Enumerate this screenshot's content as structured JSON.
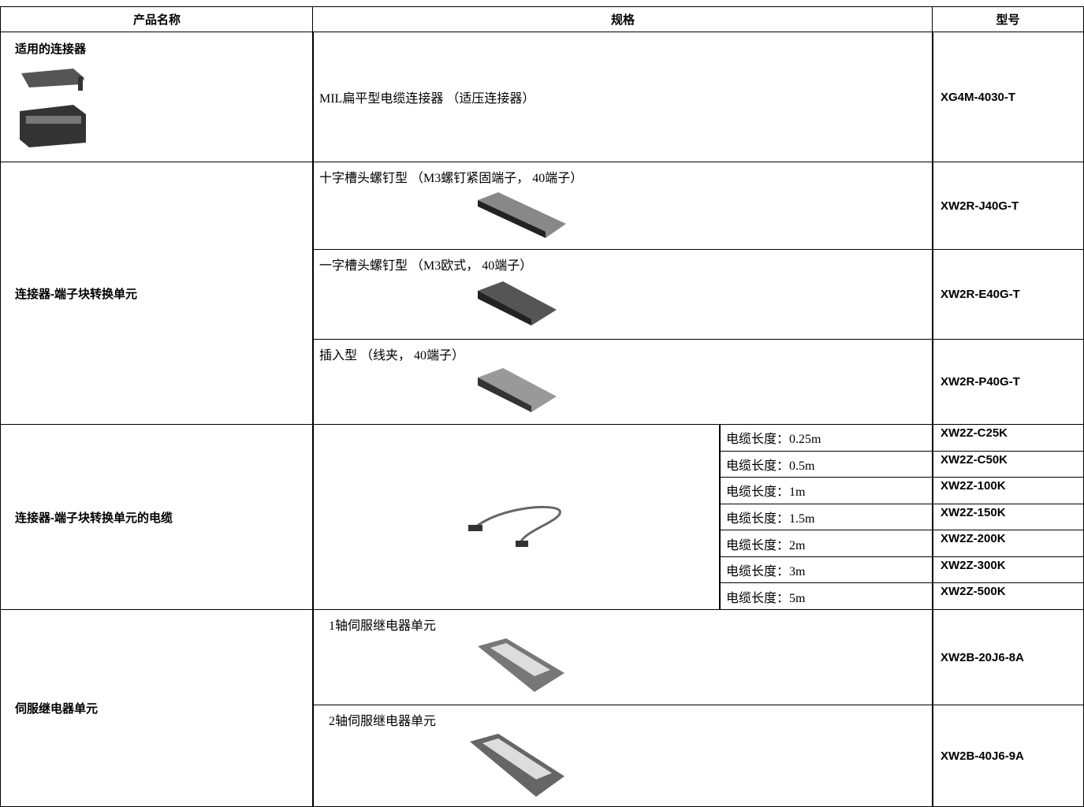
{
  "header": [
    "产品名称",
    "规格",
    "型号"
  ],
  "groups": [
    {
      "name": "适用的连接器",
      "items": [
        {
          "spec": "MIL扁平型电缆连接器 （适压连接器）",
          "model": "XG4M-4030-T"
        }
      ]
    },
    {
      "name": "连接器-端子块转换单元",
      "items": [
        {
          "spec": "十字槽头螺钉型 （M3螺钉紧固端子， 40端子）",
          "model": "XW2R-J40G-T"
        },
        {
          "spec": "一字槽头螺钉型 （M3欧式， 40端子）",
          "model": "XW2R-E40G-T"
        },
        {
          "spec": "插入型 （线夹， 40端子）",
          "model": "XW2R-P40G-T"
        }
      ]
    },
    {
      "name": "连接器-端子块转换单元的电缆",
      "items": [
        {
          "spec": "电缆长度：0.25m",
          "model": "XW2Z-C25K"
        },
        {
          "spec": "电缆长度：0.5m",
          "model": "XW2Z-C50K"
        },
        {
          "spec": "电缆长度：1m",
          "model": "XW2Z-100K"
        },
        {
          "spec": "电缆长度：1.5m",
          "model": "XW2Z-150K"
        },
        {
          "spec": "电缆长度：2m",
          "model": "XW2Z-200K"
        },
        {
          "spec": "电缆长度：3m",
          "model": "XW2Z-300K"
        },
        {
          "spec": "电缆长度：5m",
          "model": "XW2Z-500K"
        }
      ]
    },
    {
      "name": "伺服继电器单元",
      "items": [
        {
          "spec": "1轴伺服继电器单元",
          "model": "XW2B-20J6-8A"
        },
        {
          "spec": "2轴伺服继电器单元",
          "model": "XW2B-40J6-9A"
        }
      ]
    }
  ]
}
